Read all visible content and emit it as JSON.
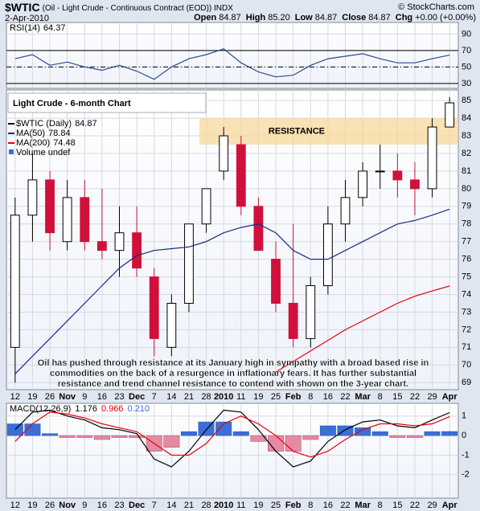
{
  "header": {
    "symbol": "$WTIC",
    "description": "(Oil - Light Crude - Continuous Contract (EOD)) INDX",
    "date": "2-Apr-2010",
    "source": "© StockCharts.com",
    "quote": [
      {
        "label": "Open",
        "value": "84.87"
      },
      {
        "label": "High",
        "value": "85.20"
      },
      {
        "label": "Low",
        "value": "84.87"
      },
      {
        "label": "Close",
        "value": "84.87"
      },
      {
        "label": "Chg",
        "value": "+0.00 (+0.00%)"
      }
    ]
  },
  "chart_data": [
    {
      "type": "candlestick",
      "title": "Light Crude - 6-month Chart",
      "name": "$WTIC (Daily)",
      "volume_label": "Volume undef",
      "categories": [
        "12",
        "19",
        "26",
        "Nov",
        "9",
        "16",
        "23",
        "Dec",
        "7",
        "14",
        "21",
        "28",
        "2010",
        "11",
        "19",
        "25",
        "Feb",
        "8",
        "16",
        "22",
        "Mar",
        "8",
        "15",
        "22",
        "29",
        "Apr"
      ],
      "open": [
        71,
        78.5,
        80.5,
        77,
        79.5,
        77,
        76.5,
        77.5,
        75,
        71,
        73.5,
        78,
        81,
        82.5,
        79,
        76,
        73.5,
        71.5,
        74.5,
        78,
        79.5,
        81,
        81,
        80.5,
        80,
        83.5
      ],
      "high": [
        79.5,
        82,
        81,
        80.5,
        80.5,
        80,
        79,
        79,
        75.5,
        74,
        78,
        80,
        83.5,
        83,
        79.5,
        77,
        78,
        75,
        79,
        80.5,
        81.5,
        82.5,
        82,
        81.5,
        84,
        85.2
      ],
      "low": [
        69,
        77,
        76.5,
        76.5,
        76.5,
        76,
        75,
        75,
        70.5,
        70.5,
        73,
        77.5,
        80.5,
        78.5,
        76.5,
        73,
        71,
        71,
        74,
        77,
        79,
        80,
        79.5,
        78.5,
        79.5,
        83.5
      ],
      "close": [
        78.5,
        80.5,
        77.5,
        79.5,
        77,
        76.5,
        77.5,
        75.5,
        71.5,
        73.5,
        78,
        80,
        83,
        79,
        76.5,
        73.5,
        71.5,
        74.5,
        78,
        79.5,
        81,
        81,
        80.5,
        80,
        83.5,
        84.87
      ],
      "series": [
        {
          "name": "MA(50)",
          "color": "#1a2a80",
          "values": [
            69.5,
            70.5,
            71.5,
            72.5,
            73.5,
            74.5,
            75.5,
            76.2,
            76.5,
            76.6,
            76.7,
            77,
            77.5,
            77.8,
            78,
            77.5,
            76.5,
            76,
            76,
            76.5,
            77,
            77.5,
            78,
            78.2,
            78.5,
            78.84
          ]
        },
        {
          "name": "MA(200)",
          "color": "#e8000a",
          "values": [
            null,
            null,
            null,
            null,
            null,
            null,
            null,
            null,
            null,
            null,
            null,
            null,
            null,
            null,
            null,
            69.6,
            70.2,
            70.8,
            71.4,
            72,
            72.5,
            73,
            73.5,
            73.9,
            74.2,
            74.48
          ]
        }
      ],
      "resistance": {
        "label": "RESISTANCE",
        "range": [
          82.5,
          84
        ]
      },
      "annotation": [
        "Oil has pushed through resistance at its January high in sympathy with a broad based rise in",
        "commodities on the back of a resurgence in inflationary fears. It has further substantial",
        "resistance and trend channel resistance to contend with shown on the 3-year chart."
      ],
      "ylim": [
        68.6,
        85.6
      ],
      "yticks": [
        69,
        70,
        71,
        72,
        73,
        74,
        75,
        76,
        77,
        78,
        79,
        80,
        81,
        82,
        83,
        84,
        85
      ],
      "grid": true
    },
    {
      "type": "line",
      "name": "RSI(14)",
      "color": "#2a4a90",
      "values": [
        60,
        65,
        52,
        56,
        50,
        46,
        52,
        45,
        35,
        50,
        60,
        65,
        72,
        55,
        44,
        38,
        40,
        52,
        60,
        63,
        66,
        60,
        55,
        55,
        60,
        64.37
      ],
      "reference_lines": [
        30,
        50,
        70
      ],
      "ylim": [
        24,
        104
      ],
      "yticks": [
        30,
        50,
        70,
        90
      ],
      "grid": true
    },
    {
      "type": "macd",
      "categories": [
        "12",
        "19",
        "26",
        "Nov",
        "9",
        "16",
        "23",
        "Dec",
        "7",
        "14",
        "21",
        "28",
        "2010",
        "11",
        "19",
        "25",
        "Feb",
        "8",
        "16",
        "22",
        "Mar",
        "8",
        "15",
        "22",
        "29",
        "Apr"
      ],
      "name": "MACD(12,26,9)",
      "series": [
        {
          "name": "MACD",
          "color": "#000000",
          "values": [
            0.3,
            1.2,
            1.3,
            1.0,
            0.8,
            0.4,
            0.3,
            0.1,
            -1.2,
            -1.6,
            -0.8,
            0.3,
            1.3,
            1.2,
            0.3,
            -0.8,
            -1.6,
            -1.3,
            -0.3,
            0.3,
            0.7,
            0.8,
            0.5,
            0.4,
            0.8,
            1.176
          ]
        },
        {
          "name": "Signal",
          "color": "#e8000a",
          "values": [
            -0.3,
            0.6,
            1.2,
            1.1,
            0.9,
            0.6,
            0.4,
            0.2,
            -0.4,
            -1.0,
            -1.0,
            -0.4,
            0.6,
            1.0,
            0.6,
            0,
            -0.8,
            -1.1,
            -0.8,
            -0.2,
            0.3,
            0.6,
            0.6,
            0.5,
            0.6,
            0.966
          ]
        },
        {
          "name": "Histogram",
          "color": "#3a6fd8",
          "values": [
            0.6,
            0.6,
            0.1,
            -0.1,
            -0.1,
            -0.2,
            -0.1,
            -0.1,
            -0.8,
            -0.6,
            0.2,
            0.7,
            0.7,
            0.2,
            -0.3,
            -0.8,
            -0.8,
            -0.2,
            0.5,
            0.5,
            0.4,
            0.2,
            -0.1,
            -0.1,
            0.2,
            0.21
          ]
        }
      ],
      "legend_values": [
        "1.176",
        "0.966",
        "0.210"
      ],
      "ylim": [
        -3.2,
        1.65
      ],
      "yticks": [
        1,
        0,
        -1,
        -2
      ],
      "grid": true
    }
  ]
}
